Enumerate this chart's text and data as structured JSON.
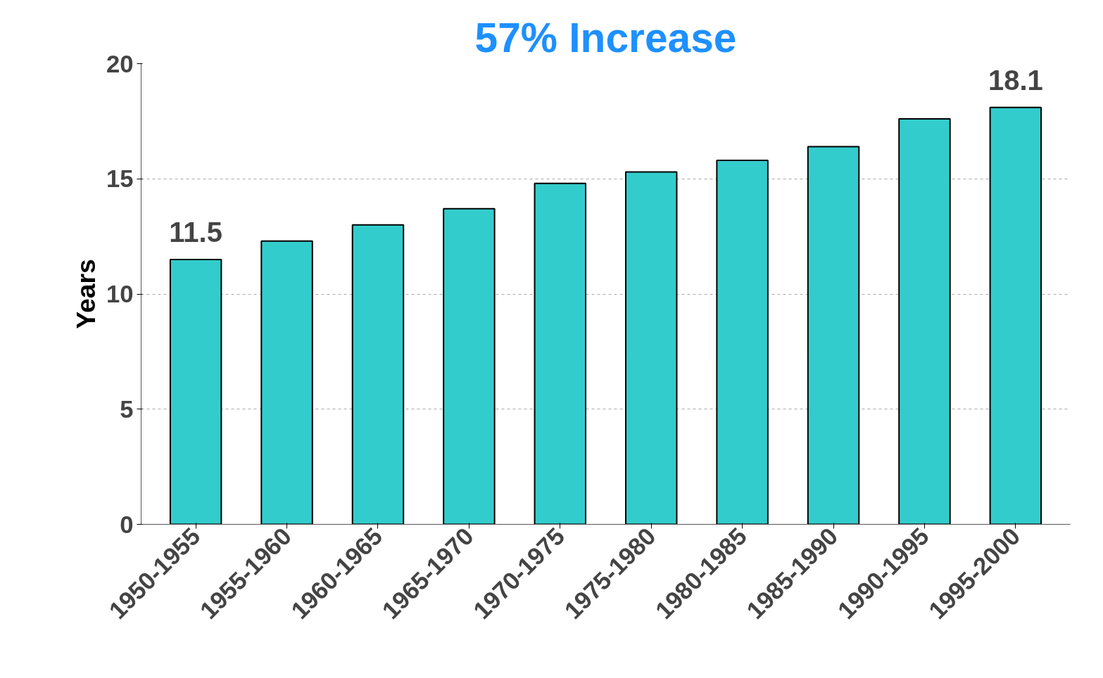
{
  "chart_data": {
    "type": "bar",
    "title": "57% Increase",
    "ylabel": "Years",
    "categories": [
      "1950-1955",
      "1955-1960",
      "1960-1965",
      "1965-1970",
      "1970-1975",
      "1975-1980",
      "1980-1985",
      "1985-1990",
      "1990-1995",
      "1995-2000"
    ],
    "values": [
      11.5,
      12.3,
      13.0,
      13.7,
      14.8,
      15.3,
      15.8,
      16.4,
      17.6,
      18.1
    ],
    "color": "#33cccc",
    "value_labels": [
      "11.5",
      null,
      null,
      null,
      null,
      null,
      null,
      null,
      null,
      "18.1"
    ],
    "ylim": [
      0,
      20
    ],
    "yticks": [
      0,
      5,
      10,
      15,
      20
    ],
    "grid": "y"
  }
}
